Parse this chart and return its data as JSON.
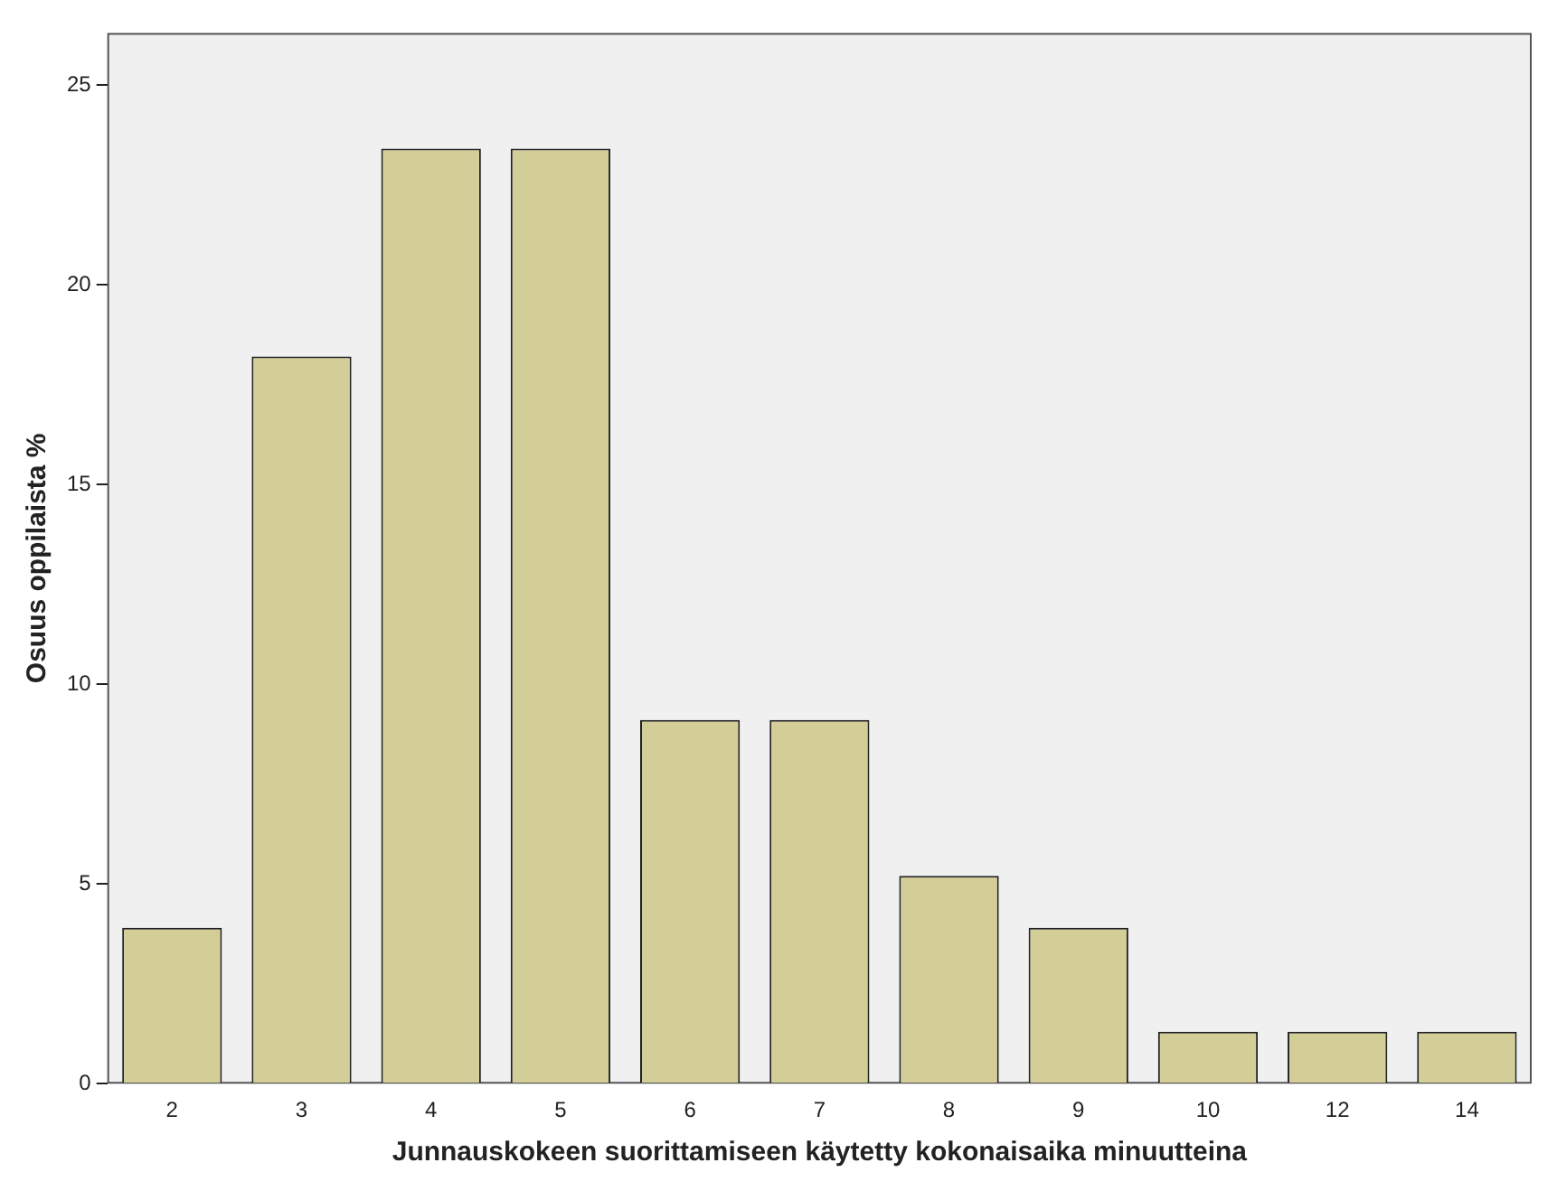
{
  "chart_data": {
    "type": "bar",
    "xlabel": "Junnauskokeen suorittamiseen käytetty kokonaisaika minuutteina",
    "ylabel": "Osuus oppilaista %",
    "categories": [
      "2",
      "3",
      "4",
      "5",
      "6",
      "7",
      "8",
      "9",
      "10",
      "12",
      "14"
    ],
    "values": [
      3.9,
      18.2,
      23.4,
      23.4,
      9.1,
      9.1,
      5.2,
      3.9,
      1.3,
      1.3,
      1.3
    ],
    "color": "#d3ce97",
    "ylim": [
      0,
      26.3
    ],
    "yticks": [
      0,
      5,
      10,
      15,
      20,
      25
    ],
    "grid": false,
    "legend": false
  }
}
